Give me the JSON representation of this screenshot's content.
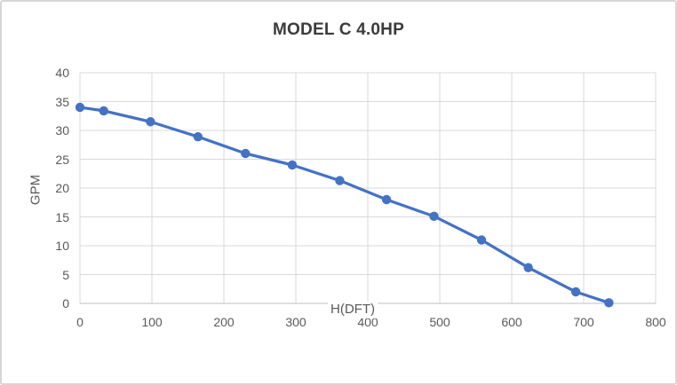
{
  "styles": {
    "accent_blue": "#4472C4",
    "gridline_color": "#d9d9d9",
    "axis_line_color": "#bfbfbf",
    "tick_label_color": "#595959",
    "title_color": "#3b3b3b",
    "frame_border_color": "#d6d6d6",
    "background": "#ffffff"
  },
  "chart_data": {
    "type": "line",
    "title": "MODEL C 4.0HP",
    "xlabel": "H(DFT)",
    "ylabel": "GPM",
    "xlim": [
      0,
      800
    ],
    "ylim": [
      0,
      40
    ],
    "x_ticks": [
      0,
      100,
      200,
      300,
      400,
      500,
      600,
      700,
      800
    ],
    "y_ticks": [
      0,
      5,
      10,
      15,
      20,
      25,
      30,
      35,
      40
    ],
    "grid": true,
    "legend": false,
    "series": [
      {
        "name": "MODEL C 4.0HP",
        "color": "#4472C4",
        "marker": "circle",
        "x": [
          0,
          33,
          98,
          164,
          230,
          295,
          361,
          426,
          492,
          558,
          623,
          689,
          735
        ],
        "y": [
          34,
          33.4,
          31.5,
          28.9,
          26,
          24,
          21.3,
          18,
          15.1,
          11,
          6.2,
          2,
          0.1
        ]
      }
    ]
  }
}
